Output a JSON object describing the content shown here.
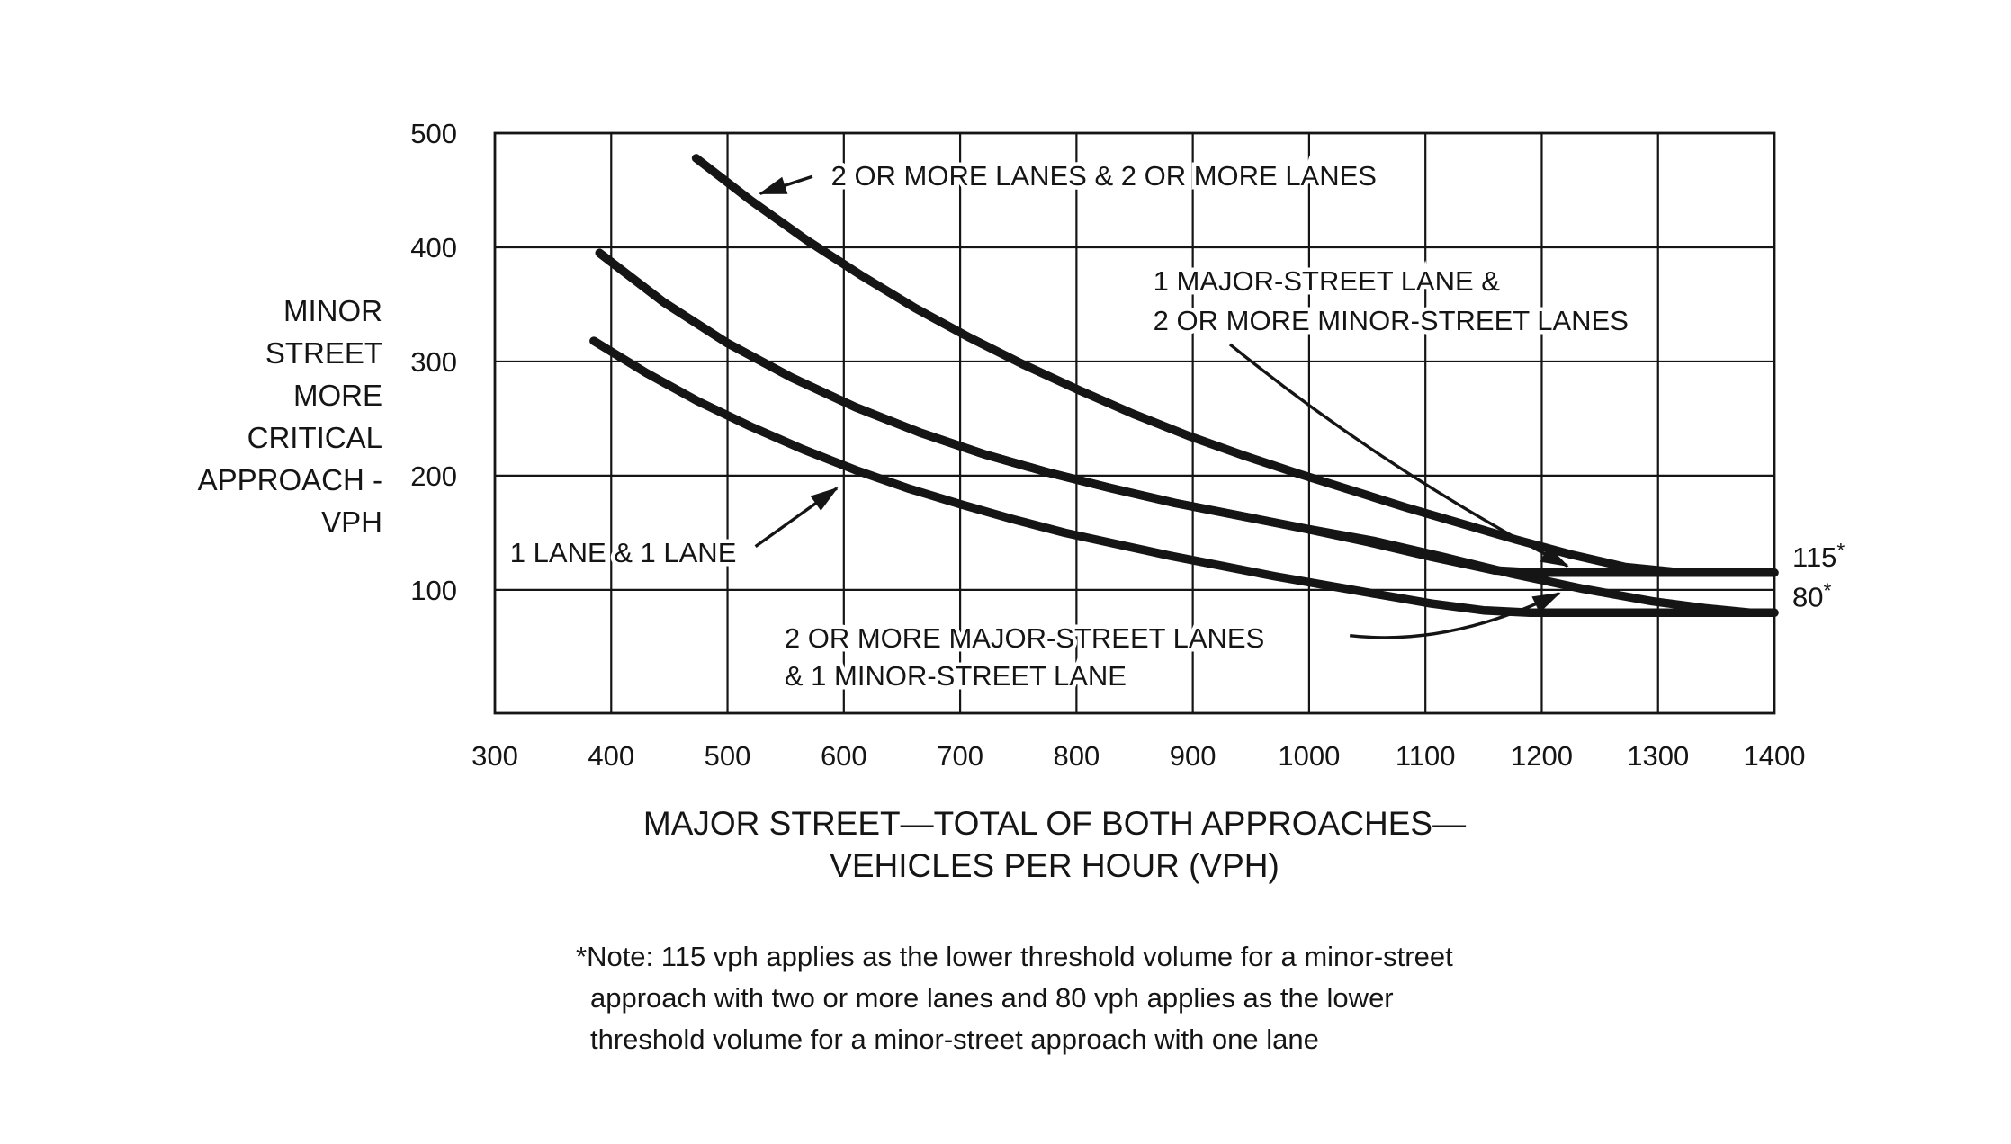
{
  "figure": {
    "background": "#ffffff",
    "ink": "#151515",
    "note_lines": [
      "*Note: 115 vph applies as the lower threshold volume for a minor-street",
      "approach with two or more lanes and 80 vph applies as the lower",
      "threshold volume for a minor-street approach with one lane"
    ]
  },
  "chart_data": {
    "type": "line",
    "title": "MAJOR STREET—TOTAL OF BOTH APPROACHES—VEHICLES PER HOUR (VPH)",
    "title_lines": [
      "MAJOR STREET—TOTAL OF BOTH APPROACHES—",
      "VEHICLES PER HOUR (VPH)"
    ],
    "xlabel": "MAJOR STREET—TOTAL OF BOTH APPROACHES—VEHICLES PER HOUR (VPH)",
    "ylabel": "MINOR STREET MORE CRITICAL APPROACH - VPH",
    "ylabel_lines": [
      "MINOR",
      "STREET",
      "MORE",
      "CRITICAL",
      "APPROACH -",
      "VPH"
    ],
    "xlim": [
      300,
      1400
    ],
    "ylim": [
      -8,
      500
    ],
    "x_ticks": [
      300,
      400,
      500,
      600,
      700,
      800,
      900,
      1000,
      1100,
      1200,
      1300,
      1400
    ],
    "y_ticks": [
      100,
      200,
      300,
      400,
      500
    ],
    "grid": true,
    "legend_position": "none",
    "series": [
      {
        "name": "2 OR MORE LANES & 2 OR MORE LANES",
        "points": [
          [
            473,
            478
          ],
          [
            520,
            441
          ],
          [
            567,
            407
          ],
          [
            614,
            376
          ],
          [
            661,
            347
          ],
          [
            708,
            321
          ],
          [
            755,
            297
          ],
          [
            802,
            275
          ],
          [
            849,
            254
          ],
          [
            896,
            235
          ],
          [
            943,
            218
          ],
          [
            990,
            202
          ],
          [
            1037,
            187
          ],
          [
            1084,
            172
          ],
          [
            1131,
            158
          ],
          [
            1178,
            144
          ],
          [
            1225,
            131
          ],
          [
            1272,
            120
          ],
          [
            1312,
            116
          ],
          [
            1350,
            115
          ],
          [
            1400,
            115
          ]
        ]
      },
      {
        "name": "1 MAJOR-STREET LANE & 2 OR MORE MINOR-STREET LANES",
        "points": [
          [
            390,
            395
          ],
          [
            445,
            352
          ],
          [
            500,
            316
          ],
          [
            555,
            286
          ],
          [
            610,
            260
          ],
          [
            665,
            238
          ],
          [
            720,
            219
          ],
          [
            775,
            203
          ],
          [
            830,
            189
          ],
          [
            885,
            176
          ],
          [
            940,
            165
          ],
          [
            995,
            154
          ],
          [
            1050,
            142
          ],
          [
            1105,
            129
          ],
          [
            1160,
            117
          ],
          [
            1195,
            115
          ],
          [
            1400,
            115
          ]
        ]
      },
      {
        "name": "2 OR MORE MAJOR-STREET LANES & 1 MINOR-STREET LANE",
        "points": [
          [
            390,
            395
          ],
          [
            445,
            352
          ],
          [
            500,
            316
          ],
          [
            555,
            286
          ],
          [
            610,
            260
          ],
          [
            665,
            238
          ],
          [
            720,
            219
          ],
          [
            775,
            203
          ],
          [
            830,
            189
          ],
          [
            885,
            176
          ],
          [
            940,
            165
          ],
          [
            995,
            154
          ],
          [
            1055,
            143
          ],
          [
            1115,
            129
          ],
          [
            1175,
            114
          ],
          [
            1235,
            101
          ],
          [
            1295,
            90
          ],
          [
            1340,
            84
          ],
          [
            1380,
            80
          ],
          [
            1400,
            80
          ]
        ]
      },
      {
        "name": "1 LANE & 1 LANE",
        "points": [
          [
            385,
            318
          ],
          [
            430,
            290
          ],
          [
            475,
            265
          ],
          [
            520,
            243
          ],
          [
            565,
            223
          ],
          [
            610,
            205
          ],
          [
            655,
            189
          ],
          [
            700,
            175
          ],
          [
            745,
            162
          ],
          [
            790,
            150
          ],
          [
            835,
            140
          ],
          [
            880,
            130
          ],
          [
            925,
            121
          ],
          [
            970,
            112
          ],
          [
            1015,
            104
          ],
          [
            1060,
            96
          ],
          [
            1105,
            88
          ],
          [
            1150,
            82
          ],
          [
            1190,
            80
          ],
          [
            1400,
            80
          ]
        ]
      }
    ],
    "thresholds": [
      {
        "value": 115,
        "label": "115",
        "star": "*"
      },
      {
        "value": 80,
        "label": "80",
        "star": "*"
      }
    ],
    "curve_labels": [
      {
        "id": "label-2-or-more-and-2-or-more",
        "lines": [
          "2 OR MORE LANES & 2 OR MORE LANES"
        ],
        "x": 589,
        "y_lines": [
          463
        ],
        "arrow": {
          "from": [
            573,
            462
          ],
          "to": [
            528,
            447
          ]
        }
      },
      {
        "id": "label-1-major-2-minor",
        "lines": [
          "1 MAJOR-STREET LANE &",
          "2 OR MORE MINOR-STREET LANES"
        ],
        "x": 866,
        "y_lines": [
          371,
          336
        ],
        "arrow": {
          "from": [
            932,
            315
          ],
          "ctrl": [
            1065,
            205
          ],
          "to": [
            1222,
            121
          ]
        }
      },
      {
        "id": "label-1-lane-1-lane",
        "lines": [
          "1 LANE & 1 LANE"
        ],
        "x": 313,
        "y_lines": [
          133
        ],
        "arrow": {
          "from": [
            524,
            138
          ],
          "to": [
            594,
            189
          ]
        }
      },
      {
        "id": "label-2-major-1-minor",
        "lines": [
          "2 OR MORE MAJOR-STREET LANES",
          "& 1 MINOR-STREET LANE"
        ],
        "x": 549,
        "y_lines": [
          58,
          25
        ],
        "arrow": {
          "from": [
            1035,
            60
          ],
          "ctrl": [
            1120,
            50
          ],
          "to": [
            1215,
            97
          ]
        }
      }
    ]
  }
}
